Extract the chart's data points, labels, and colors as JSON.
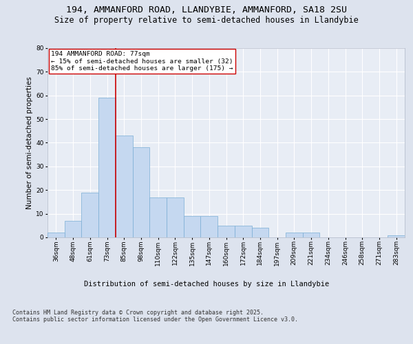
{
  "title1": "194, AMMANFORD ROAD, LLANDYBIE, AMMANFORD, SA18 2SU",
  "title2": "Size of property relative to semi-detached houses in Llandybie",
  "xlabel": "Distribution of semi-detached houses by size in Llandybie",
  "ylabel": "Number of semi-detached properties",
  "bins": [
    "36sqm",
    "48sqm",
    "61sqm",
    "73sqm",
    "85sqm",
    "98sqm",
    "110sqm",
    "122sqm",
    "135sqm",
    "147sqm",
    "160sqm",
    "172sqm",
    "184sqm",
    "197sqm",
    "209sqm",
    "221sqm",
    "234sqm",
    "246sqm",
    "258sqm",
    "271sqm",
    "283sqm"
  ],
  "values": [
    2,
    7,
    19,
    59,
    43,
    38,
    17,
    17,
    9,
    9,
    5,
    5,
    4,
    0,
    2,
    2,
    0,
    0,
    0,
    0,
    1
  ],
  "bar_color": "#c5d8f0",
  "bar_edge_color": "#7aadd4",
  "vline_color": "#cc0000",
  "annotation_text": "194 AMMANFORD ROAD: 77sqm\n← 15% of semi-detached houses are smaller (32)\n85% of semi-detached houses are larger (175) →",
  "annotation_box_color": "#ffffff",
  "annotation_box_edge": "#cc0000",
  "ylim": [
    0,
    80
  ],
  "yticks": [
    0,
    10,
    20,
    30,
    40,
    50,
    60,
    70,
    80
  ],
  "background_color": "#dde3ee",
  "plot_background": "#e8edf5",
  "grid_color": "#ffffff",
  "footer": "Contains HM Land Registry data © Crown copyright and database right 2025.\nContains public sector information licensed under the Open Government Licence v3.0.",
  "title_fontsize": 9.5,
  "subtitle_fontsize": 8.5,
  "axis_label_fontsize": 7.5,
  "tick_fontsize": 6.5,
  "annotation_fontsize": 6.8,
  "footer_fontsize": 6.0
}
